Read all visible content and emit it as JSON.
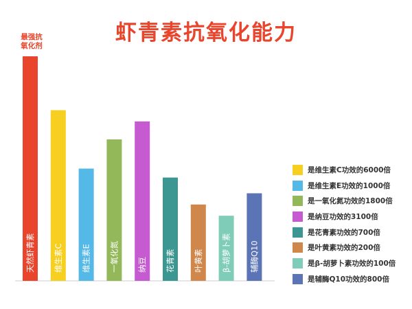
{
  "chart_data": {
    "type": "bar",
    "title": "虾青素抗氧化能力",
    "annotation": "最强抗\n氧化剂",
    "categories": [
      "天然虾青素",
      "维生素C",
      "维生素E",
      "一氧化氮",
      "纳豆",
      "花青素",
      "叶黄素",
      "β-胡萝卜素",
      "辅酶Q10"
    ],
    "values": [
      100,
      76,
      50,
      63,
      71,
      46,
      34,
      29,
      39
    ],
    "ylim": [
      0,
      100
    ],
    "colors": [
      "#e8452c",
      "#f6cf21",
      "#55b9e8",
      "#93b85a",
      "#c65bd1",
      "#3c9691",
      "#d0874b",
      "#7fcdb8",
      "#5a74b6"
    ],
    "legend_position": "right",
    "legend": [
      {
        "label": "是维生素C功效的6000倍",
        "color": "#f6cf21"
      },
      {
        "label": "是维生素E功效的1000倍",
        "color": "#55b9e8"
      },
      {
        "label": "是一氧化氮功效的1800倍",
        "color": "#93b85a"
      },
      {
        "label": "是纳豆功效的3100倍",
        "color": "#c65bd1"
      },
      {
        "label": "是花青素功效的700倍",
        "color": "#3c9691"
      },
      {
        "label": "是叶黄素功效的200倍",
        "color": "#d0874b"
      },
      {
        "label": "是β-胡萝卜素功效的100倍",
        "color": "#7fcdb8"
      },
      {
        "label": "是辅酶Q10功效的800倍",
        "color": "#5a74b6"
      }
    ]
  }
}
